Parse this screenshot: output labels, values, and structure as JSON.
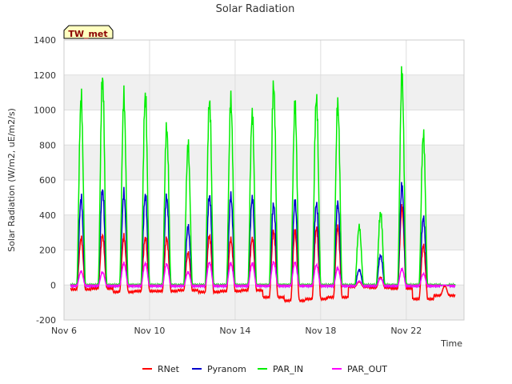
{
  "chart_data": {
    "type": "line",
    "title": "Solar Radiation",
    "xlabel": "Time",
    "ylabel": "Solar Radiation (W/m2, uE/m2/s)",
    "station_badge": "TW_met",
    "xlim": [
      6.0,
      24.7
    ],
    "ylim": [
      -200,
      1400
    ],
    "y_ticks": [
      -200,
      0,
      200,
      400,
      600,
      800,
      1000,
      1200,
      1400
    ],
    "x_ticks": [
      {
        "value": 6,
        "label": "Nov 6"
      },
      {
        "value": 10,
        "label": "Nov 10"
      },
      {
        "value": 14,
        "label": "Nov 14"
      },
      {
        "value": 18,
        "label": "Nov 18"
      },
      {
        "value": 22,
        "label": "Nov 22"
      }
    ],
    "grid": true,
    "legend_position": "bottom-center",
    "day_start": 6.3,
    "series": [
      {
        "name": "RNet",
        "color": "#ff0000",
        "key": "rnet",
        "night": [
          -25,
          -20,
          -40,
          -35,
          -35,
          -30,
          -40,
          -35,
          -30,
          -70,
          -90,
          -80,
          -70,
          -10,
          -15,
          -20,
          -80,
          -60
        ],
        "peaks": [
          290,
          310,
          300,
          295,
          290,
          200,
          310,
          285,
          290,
          340,
          340,
          360,
          365,
          20,
          50,
          480,
          250,
          0
        ]
      },
      {
        "name": "Pyranom",
        "color": "#0000cc",
        "key": "pyr",
        "night": [
          -5,
          -5,
          -5,
          -5,
          -5,
          -5,
          -5,
          -5,
          -5,
          -5,
          -5,
          -5,
          -5,
          -5,
          -5,
          -5,
          -5,
          -5
        ],
        "peaks": [
          535,
          590,
          565,
          555,
          545,
          360,
          555,
          550,
          540,
          500,
          515,
          505,
          505,
          95,
          185,
          610,
          415,
          0
        ]
      },
      {
        "name": "PAR_IN",
        "color": "#00ee00",
        "key": "par",
        "night": [
          0,
          0,
          0,
          0,
          0,
          0,
          0,
          0,
          0,
          0,
          0,
          0,
          0,
          0,
          0,
          0,
          0,
          0
        ],
        "peaks": [
          1150,
          1280,
          1150,
          1170,
          970,
          860,
          1140,
          1140,
          1060,
          1240,
          1110,
          1160,
          1120,
          360,
          450,
          1295,
          930,
          0
        ]
      },
      {
        "name": "PAR_OUT",
        "color": "#ff00ff",
        "key": "parout",
        "night": [
          -5,
          -5,
          -5,
          -5,
          -5,
          -5,
          -5,
          -5,
          -5,
          -5,
          -5,
          -5,
          -5,
          -5,
          -5,
          -5,
          -5,
          -5
        ],
        "peaks": [
          85,
          80,
          135,
          135,
          130,
          80,
          140,
          135,
          135,
          145,
          140,
          125,
          105,
          25,
          40,
          100,
          70,
          0
        ]
      }
    ]
  }
}
